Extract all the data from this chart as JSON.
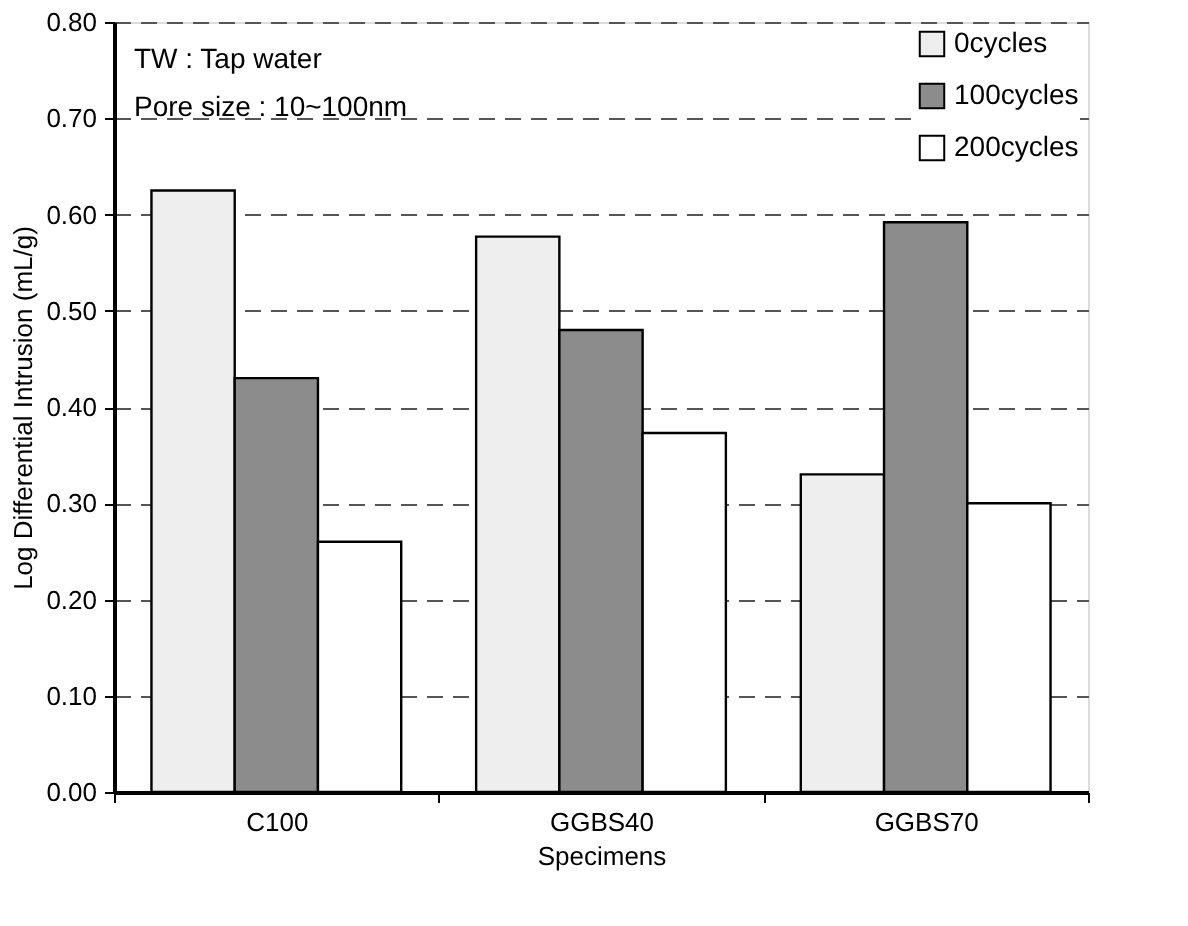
{
  "chart_data": {
    "type": "bar",
    "xlabel": "Specimens",
    "ylabel": "Log Differential Intrusion (mL/g)",
    "categories": [
      "C100",
      "GGBS40",
      "GGBS70"
    ],
    "series": [
      {
        "name": "0cycles",
        "color": "#eeeeee",
        "values": [
          0.625,
          0.577,
          0.33
        ]
      },
      {
        "name": "100cycles",
        "color": "#8c8c8c",
        "values": [
          0.43,
          0.48,
          0.592
        ]
      },
      {
        "name": "200cycles",
        "color": "#ffffff",
        "values": [
          0.26,
          0.373,
          0.3
        ]
      }
    ],
    "ylim": [
      0,
      0.8
    ],
    "yticks": [
      {
        "value": 0,
        "label": "0.00"
      },
      {
        "value": 0.1,
        "label": "0.10"
      },
      {
        "value": 0.2,
        "label": "0.20"
      },
      {
        "value": 0.3,
        "label": "0.30"
      },
      {
        "value": 0.4,
        "label": "0.40"
      },
      {
        "value": 0.5,
        "label": "0.50"
      },
      {
        "value": 0.6,
        "label": "0.60"
      },
      {
        "value": 0.7,
        "label": "0.70"
      },
      {
        "value": 0.8,
        "label": "0.80"
      }
    ],
    "grid": "y",
    "legend": "top right",
    "annotations": [
      "TW : Tap water",
      "Pore size : 10~100nm"
    ]
  }
}
